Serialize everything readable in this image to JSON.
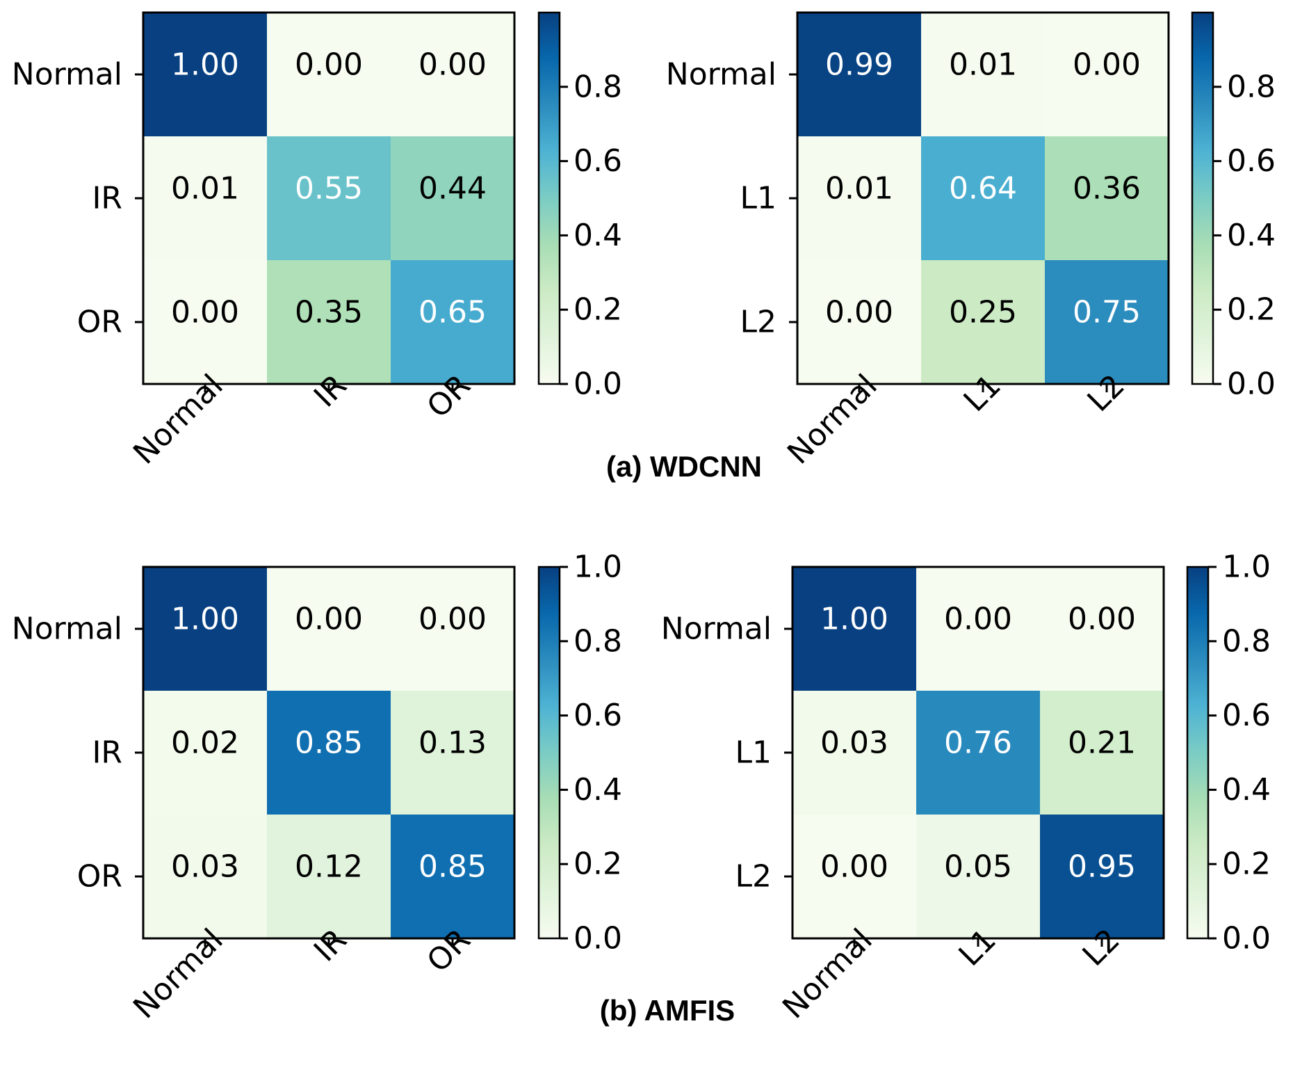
{
  "chart_data": [
    {
      "type": "heatmap",
      "panel": "a-left",
      "row_labels": [
        "Normal",
        "IR",
        "OR"
      ],
      "col_labels": [
        "Normal",
        "IR",
        "OR"
      ],
      "values": [
        [
          1.0,
          0.0,
          0.0
        ],
        [
          0.01,
          0.55,
          0.44
        ],
        [
          0.0,
          0.35,
          0.65
        ]
      ],
      "value_labels": [
        [
          "1.00",
          "0.00",
          "0.00"
        ],
        [
          "0.01",
          "0.55",
          "0.44"
        ],
        [
          "0.00",
          "0.35",
          "0.65"
        ]
      ],
      "colorbar": {
        "vmin": 0,
        "vmax": 1.0,
        "ticks": [
          0.0,
          0.2,
          0.4,
          0.6,
          0.8
        ],
        "tick_labels": [
          "0.0",
          "0.2",
          "0.4",
          "0.6",
          "0.8"
        ]
      },
      "colormap": "GnBu"
    },
    {
      "type": "heatmap",
      "panel": "a-right",
      "row_labels": [
        "Normal",
        "L1",
        "L2"
      ],
      "col_labels": [
        "Normal",
        "L1",
        "L2"
      ],
      "values": [
        [
          0.99,
          0.01,
          0.0
        ],
        [
          0.01,
          0.64,
          0.36
        ],
        [
          0.0,
          0.25,
          0.75
        ]
      ],
      "value_labels": [
        [
          "0.99",
          "0.01",
          "0.00"
        ],
        [
          "0.01",
          "0.64",
          "0.36"
        ],
        [
          "0.00",
          "0.25",
          "0.75"
        ]
      ],
      "colorbar": {
        "vmin": 0,
        "vmax": 1.0,
        "ticks": [
          0.0,
          0.2,
          0.4,
          0.6,
          0.8
        ],
        "tick_labels": [
          "0.0",
          "0.2",
          "0.4",
          "0.6",
          "0.8"
        ]
      },
      "colormap": "GnBu"
    },
    {
      "type": "heatmap",
      "panel": "b-left",
      "row_labels": [
        "Normal",
        "IR",
        "OR"
      ],
      "col_labels": [
        "Normal",
        "IR",
        "OR"
      ],
      "values": [
        [
          1.0,
          0.0,
          0.0
        ],
        [
          0.02,
          0.85,
          0.13
        ],
        [
          0.03,
          0.12,
          0.85
        ]
      ],
      "value_labels": [
        [
          "1.00",
          "0.00",
          "0.00"
        ],
        [
          "0.02",
          "0.85",
          "0.13"
        ],
        [
          "0.03",
          "0.12",
          "0.85"
        ]
      ],
      "colorbar": {
        "vmin": 0,
        "vmax": 1.0,
        "ticks": [
          0.0,
          0.2,
          0.4,
          0.6,
          0.8,
          1.0
        ],
        "tick_labels": [
          "0.0",
          "0.2",
          "0.4",
          "0.6",
          "0.8",
          "1.0"
        ]
      },
      "colormap": "GnBu"
    },
    {
      "type": "heatmap",
      "panel": "b-right",
      "row_labels": [
        "Normal",
        "L1",
        "L2"
      ],
      "col_labels": [
        "Normal",
        "L1",
        "L2"
      ],
      "values": [
        [
          1.0,
          0.0,
          0.0
        ],
        [
          0.03,
          0.76,
          0.21
        ],
        [
          0.0,
          0.05,
          0.95
        ]
      ],
      "value_labels": [
        [
          "1.00",
          "0.00",
          "0.00"
        ],
        [
          "0.03",
          "0.76",
          "0.21"
        ],
        [
          "0.00",
          "0.05",
          "0.95"
        ]
      ],
      "colorbar": {
        "vmin": 0,
        "vmax": 1.0,
        "ticks": [
          0.0,
          0.2,
          0.4,
          0.6,
          0.8,
          1.0
        ],
        "tick_labels": [
          "0.0",
          "0.2",
          "0.4",
          "0.6",
          "0.8",
          "1.0"
        ]
      },
      "colormap": "GnBu"
    }
  ],
  "captions": {
    "a": "(a) WDCNN",
    "b": "(b) AMFIS"
  }
}
